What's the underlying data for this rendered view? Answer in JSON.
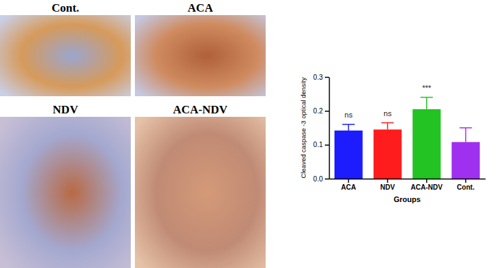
{
  "panels": [
    "Cont.",
    "ACA",
    "NDV",
    "ACA-NDV"
  ],
  "chart_data": {
    "type": "bar",
    "x_label": "Groups",
    "y_label": "Cleaved caspase -3 optical density",
    "categories": [
      "ACA",
      "NDV",
      "ACA-NDV",
      "Cont."
    ],
    "values": [
      0.142,
      0.145,
      0.205,
      0.108
    ],
    "errors": [
      0.018,
      0.02,
      0.035,
      0.042
    ],
    "colors": [
      "#1c1cff",
      "#ff1c1c",
      "#22c322",
      "#a030f0"
    ],
    "annotations": [
      {
        "category": "ACA",
        "text": "ns"
      },
      {
        "category": "NDV",
        "text": "ns"
      },
      {
        "category": "ACA-NDV",
        "text": "***"
      }
    ],
    "ylim": [
      0,
      0.3
    ],
    "yticks": [
      {
        "value": 0,
        "label": "0.0"
      },
      0.1,
      0.2,
      0.3
    ],
    "grid": false
  }
}
